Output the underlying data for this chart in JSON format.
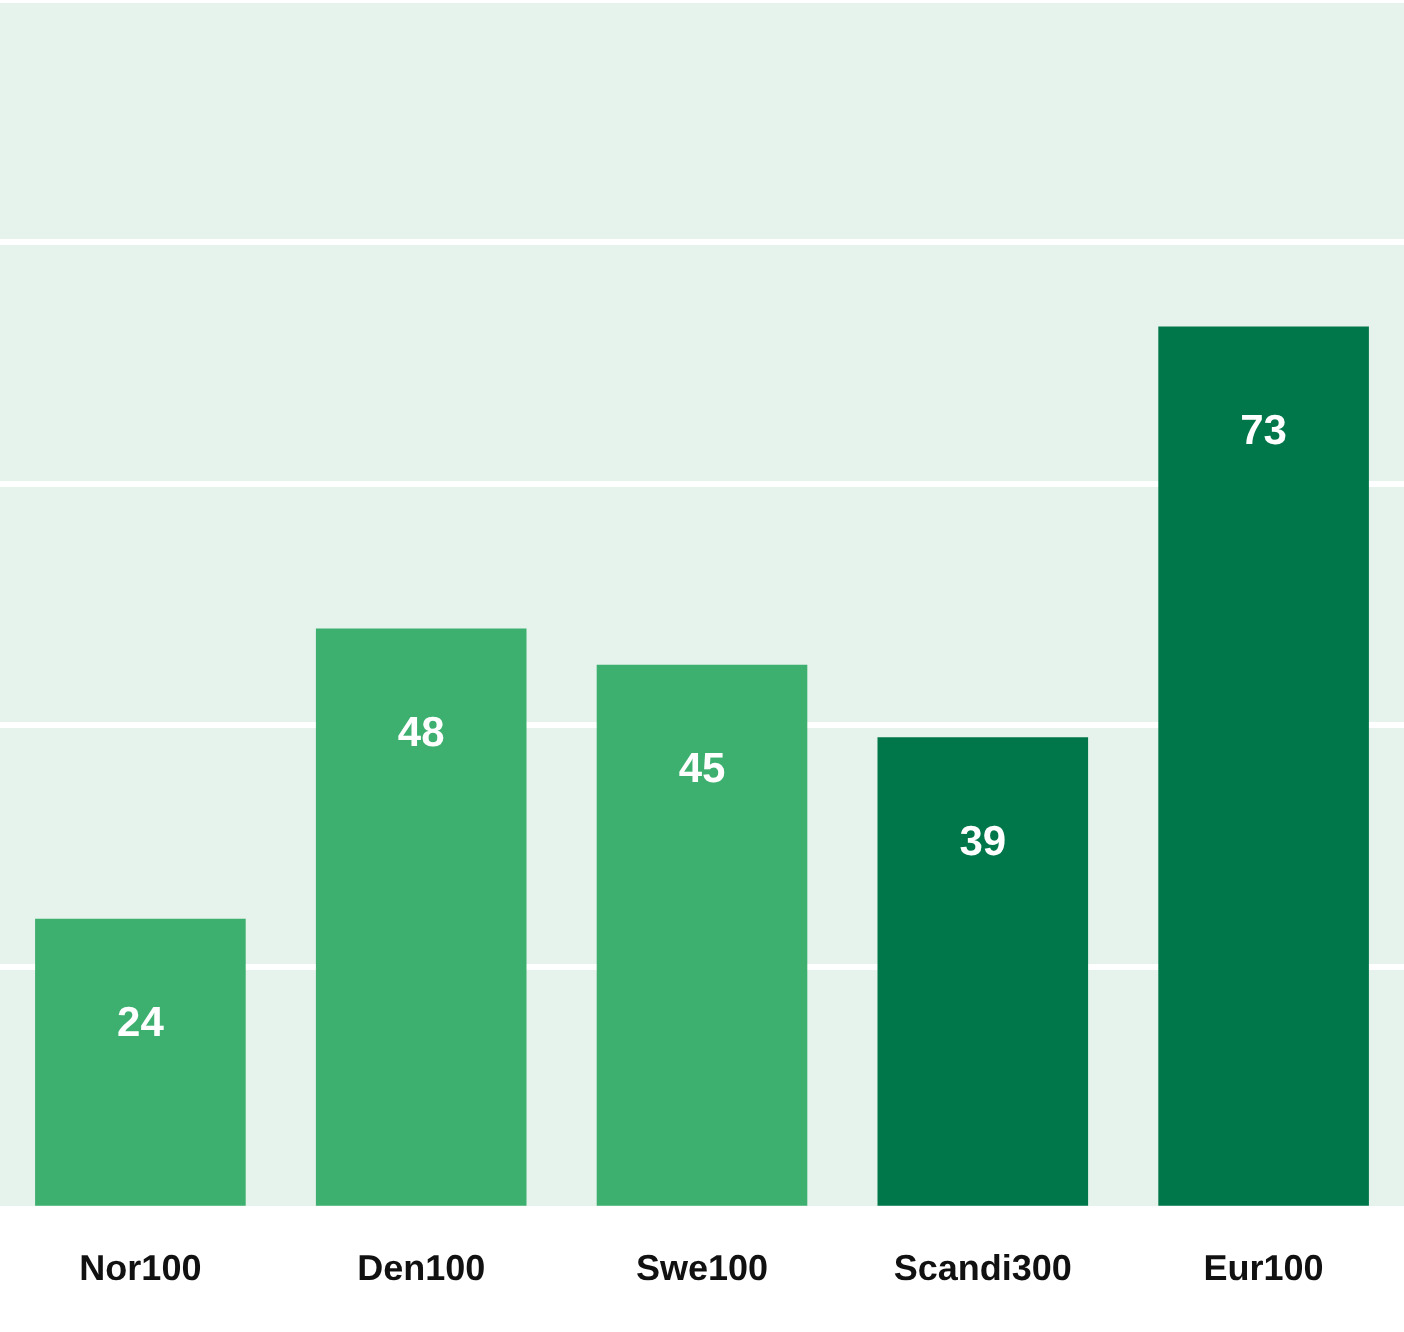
{
  "chart_data": {
    "type": "bar",
    "categories": [
      "Nor100",
      "Den100",
      "Swe100",
      "Scandi300",
      "Eur100"
    ],
    "values": [
      24,
      48,
      45,
      39,
      73
    ],
    "colors": [
      "#3daf6e",
      "#3daf6e",
      "#3daf6e",
      "#00774a",
      "#00774a"
    ],
    "ylim": [
      0,
      100
    ],
    "yticks": [
      {
        "value": 0,
        "label": null
      },
      {
        "value": 20,
        "label": null
      },
      {
        "value": 40,
        "label": null
      },
      {
        "value": 60,
        "label": null
      },
      {
        "value": 80,
        "label": null
      },
      {
        "value": 100,
        "label": null
      }
    ],
    "grid": "y",
    "tick_labels": "x",
    "data_labels": true
  }
}
